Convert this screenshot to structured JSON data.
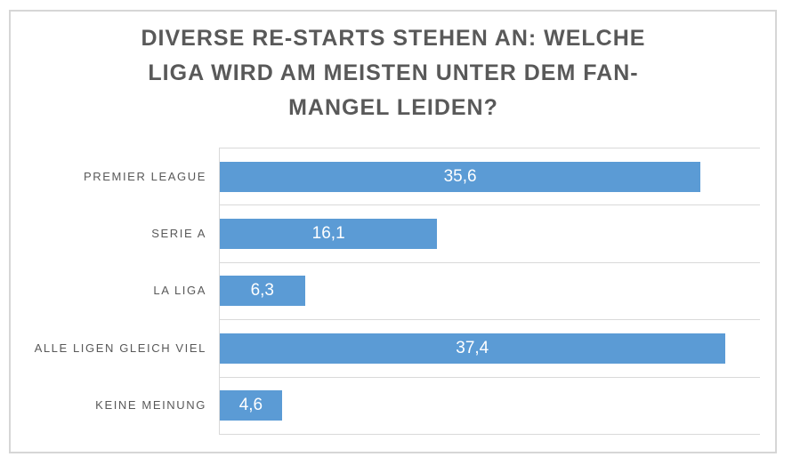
{
  "title": {
    "text": "DIVERSE RE-STARTS STEHEN AN: WELCHE LIGA WIRD AM MEISTEN UNTER DEM FAN-MANGEL LEIDEN?",
    "lines": [
      "DIVERSE RE-STARTS STEHEN AN: WELCHE",
      "LIGA WIRD AM MEISTEN UNTER DEM FAN-",
      "MANGEL LEIDEN?"
    ]
  },
  "chart_data": {
    "type": "bar",
    "orientation": "horizontal",
    "title": "DIVERSE RE-STARTS STEHEN AN: WELCHE LIGA WIRD AM MEISTEN UNTER DEM FAN-MANGEL LEIDEN?",
    "categories": [
      "PREMIER LEAGUE",
      "SERIE A",
      "LA LIGA",
      "ALLE LIGEN GLEICH VIEL",
      "KEINE MEINUNG"
    ],
    "values": [
      35.6,
      16.1,
      6.3,
      37.4,
      4.6
    ],
    "value_labels": [
      "35,6",
      "16,1",
      "6,3",
      "37,4",
      "4,6"
    ],
    "xlabel": "",
    "ylabel": "",
    "xlim": [
      0,
      40
    ],
    "grid": "horizontal category-boundary gridlines only",
    "legend": "none",
    "value_labels_position": "center-inside-bar",
    "colors": {
      "bar": "#5b9bd5",
      "title": "#595959",
      "category_label": "#595959",
      "value_label": "#ffffff",
      "gridline": "#d9d9d9",
      "border": "#d6d6d6",
      "background": "#ffffff"
    }
  }
}
